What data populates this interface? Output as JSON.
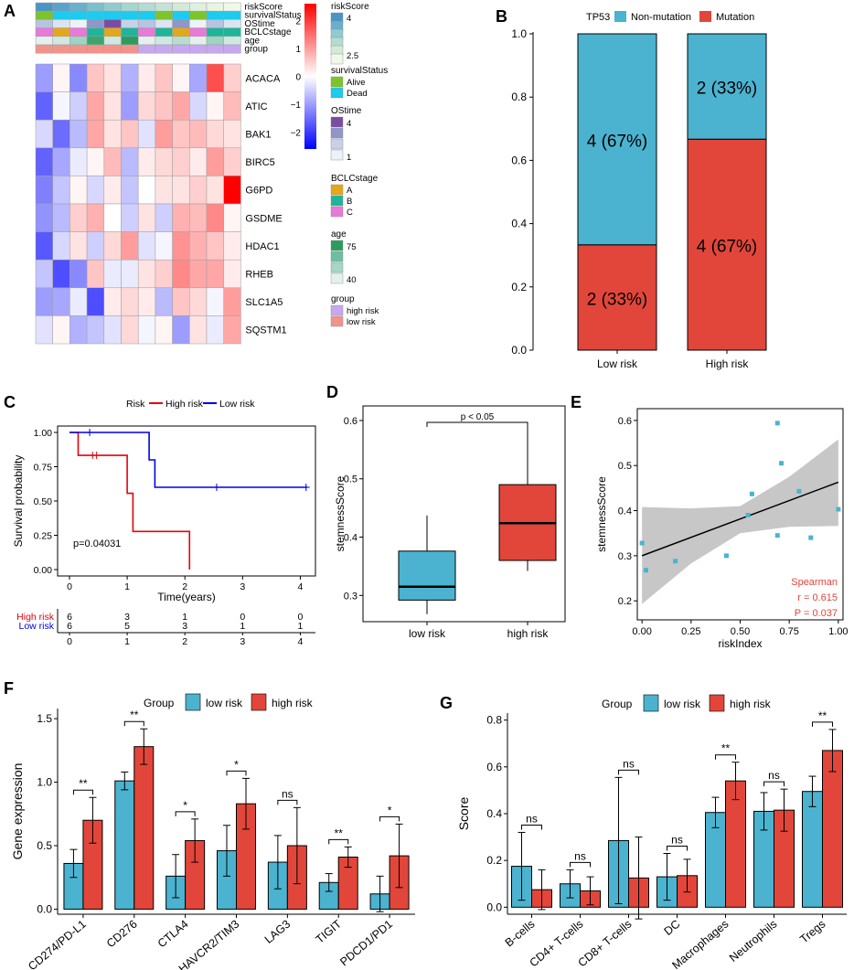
{
  "colors": {
    "low": "#4bb3cf",
    "high": "#e2463a",
    "km_high": "#e8000b",
    "km_low": "#0000e6",
    "ci_band": "#bdbdbd",
    "spearman": "#e2463a",
    "alive": "#7cc42a",
    "dead": "#1ccbee",
    "stage_a": "#e2a71b",
    "stage_b": "#1fb59a",
    "stage_c": "#e879d8",
    "group_high": "#c7a8ef",
    "group_low": "#f2938a"
  },
  "panels": {
    "a": "A",
    "b": "B",
    "c": "C",
    "d": "D",
    "e": "E",
    "f": "F",
    "g": "G"
  },
  "chart_data": [
    {
      "id": "A",
      "type": "heatmap",
      "annotation_rows": [
        "riskScore",
        "survivalStatus",
        "OStime",
        "BCLCstage",
        "age",
        "group"
      ],
      "genes": [
        "ACACA",
        "ATIC",
        "BAK1",
        "BIRC5",
        "G6PD",
        "GSDME",
        "HDAC1",
        "RHEB",
        "SLC1A5",
        "SQSTM1"
      ],
      "values": [
        [
          -1.0,
          0.1,
          -1.2,
          0.6,
          0.3,
          -0.8,
          0.2,
          0.6,
          0.1,
          -0.9,
          1.8,
          0.5
        ],
        [
          -1.6,
          -0.1,
          -0.5,
          0.9,
          0.3,
          -1.0,
          0.4,
          0.6,
          0.9,
          -0.4,
          0.1,
          0.7
        ],
        [
          -0.4,
          -1.5,
          -0.7,
          0.9,
          0.3,
          0.6,
          -0.3,
          1.0,
          0.6,
          0.7,
          0.4,
          0.3
        ],
        [
          -1.6,
          -0.9,
          -0.2,
          0.1,
          0.7,
          -0.7,
          0.2,
          0.4,
          0.5,
          0.2,
          1.0,
          0.5
        ],
        [
          -1.3,
          -0.6,
          0.1,
          -0.4,
          0.2,
          -0.6,
          0.0,
          0.3,
          0.3,
          0.5,
          0.3,
          2.6
        ],
        [
          -1.1,
          -0.7,
          0.5,
          0.8,
          0.0,
          -0.5,
          0.3,
          -0.5,
          0.8,
          0.7,
          1.2,
          0.1
        ],
        [
          -1.7,
          -0.4,
          0.3,
          -0.5,
          0.4,
          1.0,
          -0.3,
          -0.1,
          1.1,
          0.8,
          0.6,
          0.2
        ],
        [
          -0.6,
          -1.8,
          -1.2,
          0.6,
          -0.2,
          -0.2,
          0.3,
          0.5,
          1.2,
          0.9,
          0.9,
          0.2
        ],
        [
          -1.0,
          -0.9,
          -0.2,
          -1.8,
          0.2,
          0.4,
          0.2,
          -0.7,
          0.6,
          0.4,
          -0.1,
          1.0
        ],
        [
          -0.3,
          0.1,
          -0.8,
          -0.6,
          -0.3,
          0.4,
          -0.1,
          0.1,
          -1.0,
          0.3,
          -0.2,
          0.9
        ]
      ],
      "scale_ticks": [
        2,
        1,
        0,
        -1,
        -2
      ],
      "scale_range": [
        -2.6,
        2.6
      ],
      "legend": {
        "riskScore": {
          "title": "riskScore",
          "ticks": [
            "4",
            "2.5"
          ]
        },
        "survivalStatus": {
          "title": "survivalStatus",
          "items": [
            "Alive",
            "Dead"
          ]
        },
        "OStime": {
          "title": "OStime",
          "ticks": [
            "4",
            "1"
          ]
        },
        "BCLCstage": {
          "title": "BCLCstage",
          "items": [
            "A",
            "B",
            "C"
          ]
        },
        "age": {
          "title": "age",
          "ticks": [
            "75",
            "40"
          ]
        },
        "group": {
          "title": "group",
          "items": [
            "high risk",
            "low risk"
          ]
        }
      }
    },
    {
      "id": "B",
      "type": "bar",
      "stacked": true,
      "legend_title": "TP53",
      "legend": [
        "Non-mutation",
        "Mutation"
      ],
      "categories": [
        "Low risk",
        "High risk"
      ],
      "series": [
        {
          "name": "Mutation",
          "values": [
            0.333,
            0.667
          ],
          "labels": [
            "2 (33%)",
            "4 (67%)"
          ]
        },
        {
          "name": "Non-mutation",
          "values": [
            0.667,
            0.333
          ],
          "labels": [
            "4 (67%)",
            "2 (33%)"
          ]
        }
      ],
      "yticks": [
        "0.0",
        "0.2",
        "0.4",
        "0.6",
        "0.8",
        "1.0"
      ],
      "ylim": [
        0,
        1
      ]
    },
    {
      "id": "C",
      "type": "line",
      "legend_title": "Risk",
      "series": [
        {
          "name": "High risk",
          "steps": [
            [
              0,
              1.0
            ],
            [
              0.15,
              0.833
            ],
            [
              1.0,
              0.556
            ],
            [
              1.1,
              0.278
            ],
            [
              2.08,
              0.0
            ]
          ],
          "end_x": 2.08,
          "censor": [
            [
              0.4,
              0.833
            ],
            [
              0.47,
              0.833
            ]
          ]
        },
        {
          "name": "Low risk",
          "steps": [
            [
              0,
              1.0
            ],
            [
              1.38,
              0.8
            ],
            [
              1.48,
              0.6
            ]
          ],
          "end_x": 4.12,
          "censor": [
            [
              0.35,
              1.0
            ],
            [
              2.55,
              0.6
            ],
            [
              4.1,
              0.6
            ]
          ]
        }
      ],
      "pvalue": "p=0.04031",
      "xlabel": "Time(years)",
      "ylabel": "Survival probability",
      "xticks": [
        "0",
        "1",
        "2",
        "3",
        "4"
      ],
      "yticks": [
        "0.00",
        "0.25",
        "0.50",
        "0.75",
        "1.00"
      ],
      "xlim": [
        0,
        4.12
      ],
      "ylim": [
        0,
        1
      ],
      "risk_table": [
        {
          "name": "High risk",
          "values": [
            "6",
            "3",
            "1",
            "0",
            "0"
          ]
        },
        {
          "name": "Low risk",
          "values": [
            "6",
            "5",
            "3",
            "1",
            "1"
          ]
        }
      ]
    },
    {
      "id": "D",
      "type": "box",
      "categories": [
        "low risk",
        "high risk"
      ],
      "boxes": [
        {
          "min": 0.268,
          "q1": 0.292,
          "median": 0.315,
          "q3": 0.376,
          "max": 0.437
        },
        {
          "min": 0.342,
          "q1": 0.36,
          "median": 0.424,
          "q3": 0.49,
          "max": 0.597
        }
      ],
      "ylabel": "stemnessScore",
      "yticks": [
        "0.3",
        "0.4",
        "0.5",
        "0.6"
      ],
      "ylim": [
        0.255,
        0.625
      ],
      "annotation": "p < 0.05"
    },
    {
      "id": "E",
      "type": "scatter",
      "x": [
        0.0,
        0.02,
        0.17,
        0.43,
        0.54,
        0.56,
        0.69,
        0.69,
        0.71,
        0.8,
        0.86,
        1.0
      ],
      "y": [
        0.328,
        0.268,
        0.288,
        0.3,
        0.39,
        0.437,
        0.345,
        0.594,
        0.505,
        0.443,
        0.34,
        0.403
      ],
      "fit": {
        "intercept": 0.3,
        "slope": 0.163
      },
      "band": {
        "x": [
          0,
          0.25,
          0.5,
          0.75,
          1.0
        ],
        "upper": [
          0.408,
          0.405,
          0.41,
          0.475,
          0.558
        ],
        "lower": [
          0.193,
          0.283,
          0.35,
          0.364,
          0.366
        ]
      },
      "xlabel": "riskIndex",
      "ylabel": "stemnessScore",
      "xticks": [
        "0.00",
        "0.25",
        "0.50",
        "0.75",
        "1.00"
      ],
      "yticks": [
        "0.2",
        "0.3",
        "0.4",
        "0.5",
        "0.6"
      ],
      "xlim": [
        -0.01,
        1.01
      ],
      "ylim": [
        0.17,
        0.62
      ],
      "stats": [
        "Spearman",
        "r = 0.615",
        "P = 0.037"
      ]
    },
    {
      "id": "F",
      "type": "bar",
      "legend_title": "Group",
      "legend": [
        "low risk",
        "high risk"
      ],
      "categories": [
        "CD274/PD-L1",
        "CD276",
        "CTLA4",
        "HAVCR2/TIM3",
        "LAG3",
        "TIGIT",
        "PDCD1/PD1"
      ],
      "series": [
        {
          "name": "low risk",
          "values": [
            0.36,
            1.01,
            0.26,
            0.46,
            0.37,
            0.21,
            0.12
          ],
          "err": [
            0.11,
            0.07,
            0.17,
            0.2,
            0.21,
            0.07,
            0.14
          ]
        },
        {
          "name": "high risk",
          "values": [
            0.7,
            1.28,
            0.54,
            0.83,
            0.5,
            0.41,
            0.42
          ],
          "err": [
            0.18,
            0.14,
            0.17,
            0.2,
            0.3,
            0.08,
            0.25
          ]
        }
      ],
      "significance": [
        "**",
        "**",
        "*",
        "*",
        "ns",
        "**",
        "*"
      ],
      "ylabel": "Gene expression",
      "yticks": [
        "0.0",
        "0.5",
        "1.0",
        "1.5"
      ],
      "ylim": [
        -0.04,
        1.58
      ]
    },
    {
      "id": "G",
      "type": "bar",
      "legend_title": "Group",
      "legend": [
        "low risk",
        "high risk"
      ],
      "categories": [
        "B-cells",
        "CD4+ T-cells",
        "CD8+ T-cells",
        "DC",
        "Macrophages",
        "Neutrophils",
        "Tregs"
      ],
      "series": [
        {
          "name": "low risk",
          "values": [
            0.175,
            0.1,
            0.285,
            0.13,
            0.405,
            0.41,
            0.495
          ],
          "err": [
            0.145,
            0.06,
            0.27,
            0.1,
            0.065,
            0.08,
            0.065
          ]
        },
        {
          "name": "high risk",
          "values": [
            0.075,
            0.07,
            0.125,
            0.135,
            0.54,
            0.415,
            0.67
          ],
          "err": [
            0.085,
            0.06,
            0.175,
            0.07,
            0.08,
            0.09,
            0.09
          ]
        }
      ],
      "significance": [
        "ns",
        "ns",
        "ns",
        "ns",
        "**",
        "ns",
        "**"
      ],
      "ylabel": "Score",
      "yticks": [
        "0.0",
        "0.2",
        "0.4",
        "0.6",
        "0.8"
      ],
      "ylim": [
        -0.03,
        0.83
      ]
    }
  ]
}
